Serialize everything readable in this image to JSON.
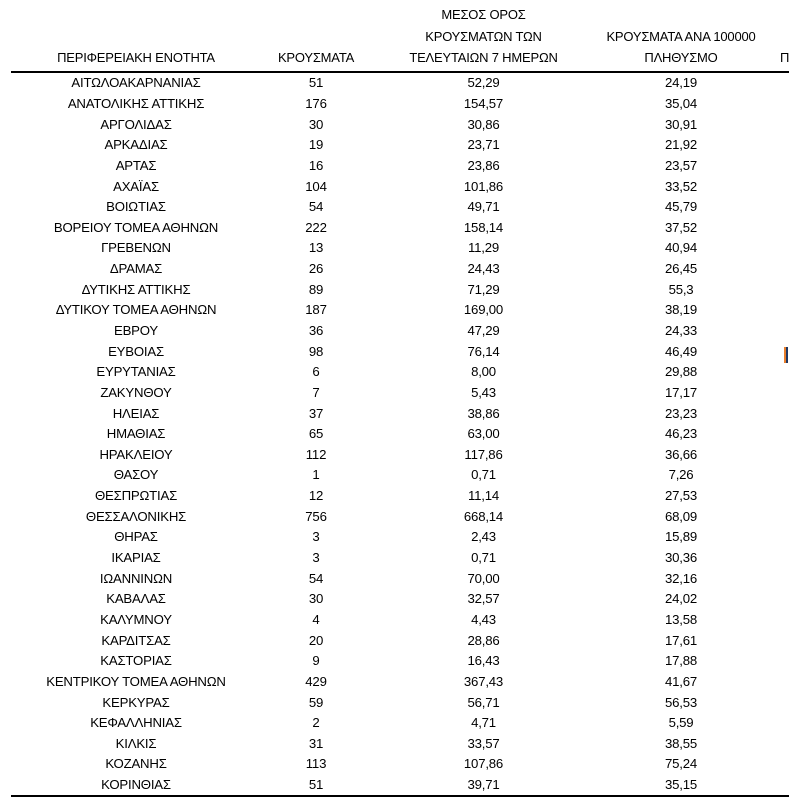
{
  "table": {
    "header": {
      "region": "ΠΕΡΙΦΕΡΕΙΑΚΗ ΕΝΟΤΗΤΑ",
      "cases": "ΚΡΟΥΣΜΑΤΑ",
      "avg7_line1": "ΜΕΣΟΣ ΟΡΟΣ",
      "avg7_line2": "ΚΡΟΥΣΜΑΤΩΝ ΤΩΝ",
      "avg7_line3": "ΤΕΛΕΥΤΑΙΩΝ 7 ΗΜΕΡΩΝ",
      "per100k_line1": "ΚΡΟΥΣΜΑΤΑ ΑΝΑ 100000",
      "per100k_line2": "ΠΛΗΘΥΣΜΟ",
      "partial_next_column": "Π"
    },
    "rows": [
      {
        "region": "ΑΙΤΩΛΟΑΚΑΡΝΑΝΙΑΣ",
        "cases": "51",
        "avg7": "52,29",
        "per100k": "24,19"
      },
      {
        "region": "ΑΝΑΤΟΛΙΚΗΣ ΑΤΤΙΚΗΣ",
        "cases": "176",
        "avg7": "154,57",
        "per100k": "35,04"
      },
      {
        "region": "ΑΡΓΟΛΙΔΑΣ",
        "cases": "30",
        "avg7": "30,86",
        "per100k": "30,91"
      },
      {
        "region": "ΑΡΚΑΔΙΑΣ",
        "cases": "19",
        "avg7": "23,71",
        "per100k": "21,92"
      },
      {
        "region": "ΑΡΤΑΣ",
        "cases": "16",
        "avg7": "23,86",
        "per100k": "23,57"
      },
      {
        "region": "ΑΧΑΪΑΣ",
        "cases": "104",
        "avg7": "101,86",
        "per100k": "33,52"
      },
      {
        "region": "ΒΟΙΩΤΙΑΣ",
        "cases": "54",
        "avg7": "49,71",
        "per100k": "45,79"
      },
      {
        "region": "ΒΟΡΕΙΟΥ ΤΟΜΕΑ ΑΘΗΝΩΝ",
        "cases": "222",
        "avg7": "158,14",
        "per100k": "37,52"
      },
      {
        "region": "ΓΡΕΒΕΝΩΝ",
        "cases": "13",
        "avg7": "11,29",
        "per100k": "40,94"
      },
      {
        "region": "ΔΡΑΜΑΣ",
        "cases": "26",
        "avg7": "24,43",
        "per100k": "26,45"
      },
      {
        "region": "ΔΥΤΙΚΗΣ ΑΤΤΙΚΗΣ",
        "cases": "89",
        "avg7": "71,29",
        "per100k": "55,3"
      },
      {
        "region": "ΔΥΤΙΚΟΥ ΤΟΜΕΑ ΑΘΗΝΩΝ",
        "cases": "187",
        "avg7": "169,00",
        "per100k": "38,19"
      },
      {
        "region": "ΕΒΡΟΥ",
        "cases": "36",
        "avg7": "47,29",
        "per100k": "24,33"
      },
      {
        "region": "ΕΥΒΟΙΑΣ",
        "cases": "98",
        "avg7": "76,14",
        "per100k": "46,49"
      },
      {
        "region": "ΕΥΡΥΤΑΝΙΑΣ",
        "cases": "6",
        "avg7": "8,00",
        "per100k": "29,88"
      },
      {
        "region": "ΖΑΚΥΝΘΟΥ",
        "cases": "7",
        "avg7": "5,43",
        "per100k": "17,17"
      },
      {
        "region": "ΗΛΕΙΑΣ",
        "cases": "37",
        "avg7": "38,86",
        "per100k": "23,23"
      },
      {
        "region": "ΗΜΑΘΙΑΣ",
        "cases": "65",
        "avg7": "63,00",
        "per100k": "46,23"
      },
      {
        "region": "ΗΡΑΚΛΕΙΟΥ",
        "cases": "112",
        "avg7": "117,86",
        "per100k": "36,66"
      },
      {
        "region": "ΘΑΣΟΥ",
        "cases": "1",
        "avg7": "0,71",
        "per100k": "7,26"
      },
      {
        "region": "ΘΕΣΠΡΩΤΙΑΣ",
        "cases": "12",
        "avg7": "11,14",
        "per100k": "27,53"
      },
      {
        "region": "ΘΕΣΣΑΛΟΝΙΚΗΣ",
        "cases": "756",
        "avg7": "668,14",
        "per100k": "68,09"
      },
      {
        "region": "ΘΗΡΑΣ",
        "cases": "3",
        "avg7": "2,43",
        "per100k": "15,89"
      },
      {
        "region": "ΙΚΑΡΙΑΣ",
        "cases": "3",
        "avg7": "0,71",
        "per100k": "30,36"
      },
      {
        "region": "ΙΩΑΝΝΙΝΩΝ",
        "cases": "54",
        "avg7": "70,00",
        "per100k": "32,16"
      },
      {
        "region": "ΚΑΒΑΛΑΣ",
        "cases": "30",
        "avg7": "32,57",
        "per100k": "24,02"
      },
      {
        "region": "ΚΑΛΥΜΝΟΥ",
        "cases": "4",
        "avg7": "4,43",
        "per100k": "13,58"
      },
      {
        "region": "ΚΑΡΔΙΤΣΑΣ",
        "cases": "20",
        "avg7": "28,86",
        "per100k": "17,61"
      },
      {
        "region": "ΚΑΣΤΟΡΙΑΣ",
        "cases": "9",
        "avg7": "16,43",
        "per100k": "17,88"
      },
      {
        "region": "ΚΕΝΤΡΙΚΟΥ ΤΟΜΕΑ ΑΘΗΝΩΝ",
        "cases": "429",
        "avg7": "367,43",
        "per100k": "41,67"
      },
      {
        "region": "ΚΕΡΚΥΡΑΣ",
        "cases": "59",
        "avg7": "56,71",
        "per100k": "56,53"
      },
      {
        "region": "ΚΕΦΑΛΛΗΝΙΑΣ",
        "cases": "2",
        "avg7": "4,71",
        "per100k": "5,59"
      },
      {
        "region": "ΚΙΛΚΙΣ",
        "cases": "31",
        "avg7": "33,57",
        "per100k": "38,55"
      },
      {
        "region": "ΚΟΖΑΝΗΣ",
        "cases": "113",
        "avg7": "107,86",
        "per100k": "75,24"
      },
      {
        "region": "ΚΟΡΙΝΘΙΑΣ",
        "cases": "51",
        "avg7": "39,71",
        "per100k": "35,15"
      }
    ]
  },
  "colors": {
    "text": "#000000",
    "background": "#FFFFFF",
    "rule": "#000000",
    "cutoff_stripe_orange": "#E87E2B",
    "cutoff_stripe_navy": "#1F3864"
  }
}
